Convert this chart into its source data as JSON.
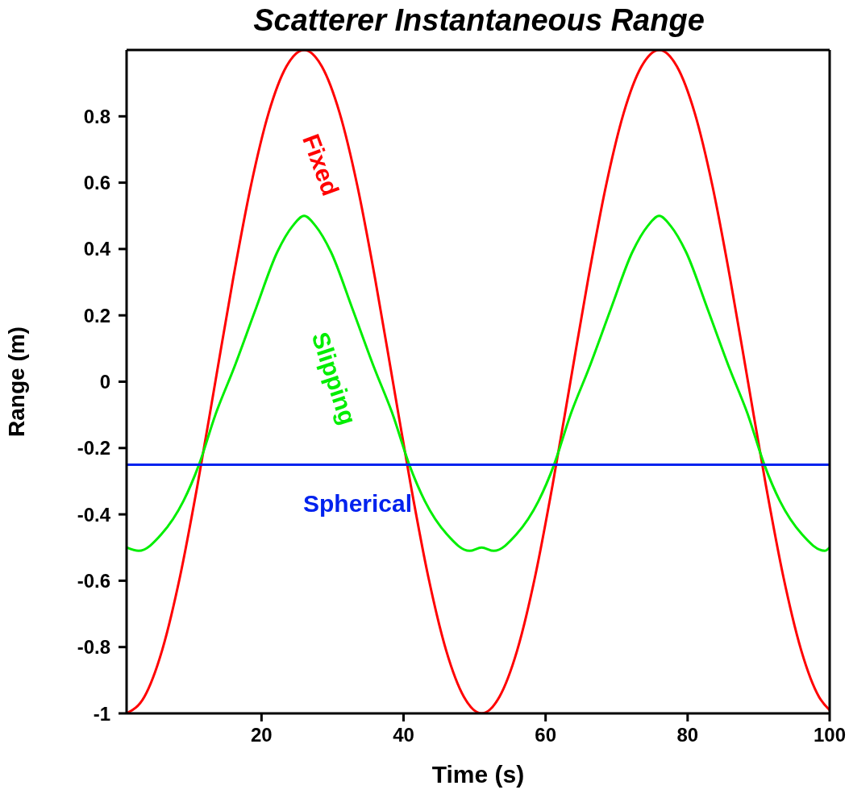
{
  "chart_data": {
    "type": "line",
    "title": "Scatterer Instantaneous Range",
    "xlabel": "Time (s)",
    "ylabel": "Range (m)",
    "xlim": [
      1,
      100
    ],
    "xticks": [
      20,
      40,
      60,
      80,
      100
    ],
    "ylim": [
      -1,
      1
    ],
    "yticks": [
      -1,
      -0.8,
      -0.6,
      -0.4,
      -0.2,
      0,
      0.2,
      0.4,
      0.6,
      0.8
    ],
    "series": [
      {
        "name": "Fixed",
        "color": "#ff0000",
        "x": [
          1,
          3.5,
          6,
          8.5,
          11,
          13.5,
          16,
          18.5,
          21,
          23.5,
          26,
          28.5,
          31,
          33.5,
          36,
          38.5,
          41,
          43.5,
          46,
          48.5,
          51,
          53.5,
          56,
          58.5,
          61,
          63.5,
          66,
          68.5,
          71,
          73.5,
          76,
          78.5,
          81,
          83.5,
          86,
          88.5,
          91,
          93.5,
          96,
          98.5,
          100
        ],
        "values": [
          -1,
          -0.95,
          -0.81,
          -0.59,
          -0.31,
          0,
          0.31,
          0.59,
          0.81,
          0.95,
          1,
          0.95,
          0.81,
          0.59,
          0.31,
          0,
          -0.31,
          -0.59,
          -0.81,
          -0.95,
          -1,
          -0.95,
          -0.81,
          -0.59,
          -0.31,
          0,
          0.31,
          0.59,
          0.81,
          0.95,
          1,
          0.95,
          0.81,
          0.59,
          0.31,
          0,
          -0.31,
          -0.59,
          -0.81,
          -0.95,
          -0.99
        ]
      },
      {
        "name": "Slipping",
        "color": "#00ee00",
        "x": [
          1,
          2.7,
          5.9,
          9,
          11.2,
          13.5,
          16.1,
          19.2,
          22.2,
          24.4,
          26,
          27.6,
          29.8,
          32.8,
          35.9,
          38.5,
          40.8,
          43,
          46.1,
          49.3,
          51,
          52.7,
          55.9,
          59,
          61.2,
          63.5,
          66.1,
          69.2,
          72.2,
          74.4,
          76,
          77.6,
          79.8,
          82.8,
          85.9,
          88.5,
          90.8,
          93,
          96.1,
          99.3,
          100
        ],
        "values": [
          -0.5,
          -0.51,
          -0.46,
          -0.36,
          -0.25,
          -0.1,
          0.04,
          0.22,
          0.39,
          0.47,
          0.5,
          0.47,
          0.39,
          0.22,
          0.04,
          -0.1,
          -0.25,
          -0.36,
          -0.46,
          -0.51,
          -0.5,
          -0.51,
          -0.46,
          -0.36,
          -0.25,
          -0.1,
          0.04,
          0.22,
          0.39,
          0.47,
          0.5,
          0.47,
          0.39,
          0.22,
          0.04,
          -0.1,
          -0.25,
          -0.36,
          -0.46,
          -0.51,
          -0.5
        ]
      },
      {
        "name": "Spherical",
        "color": "#0022ee",
        "x": [
          1,
          100
        ],
        "values": [
          -0.25,
          -0.25
        ]
      }
    ]
  }
}
